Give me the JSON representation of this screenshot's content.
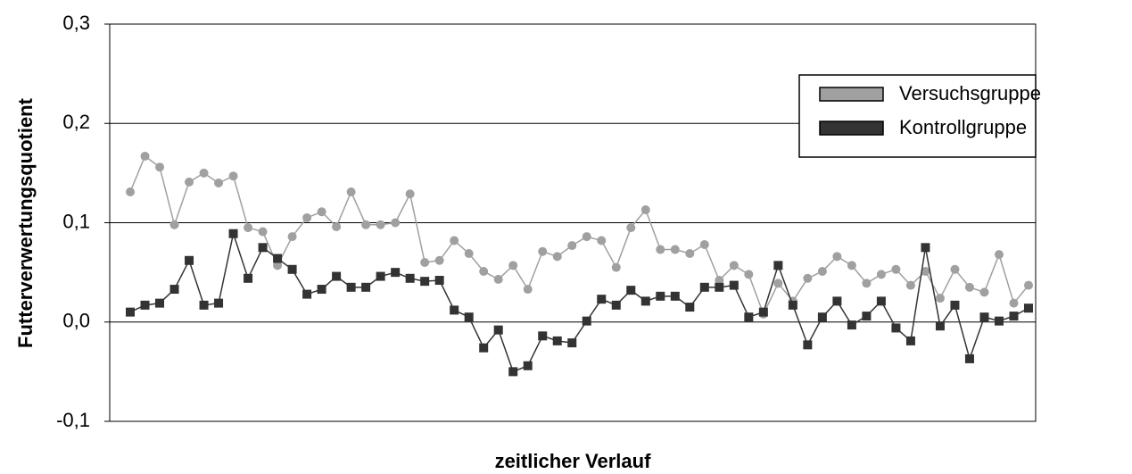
{
  "chart_data": {
    "type": "line",
    "xlabel": "zeitlicher Verlauf",
    "ylabel": "Futterverwertungsquotient",
    "ylim": [
      -0.1,
      0.3
    ],
    "yticks": [
      {
        "value": -0.1,
        "label": "-0,1"
      },
      {
        "value": 0,
        "label": "0,0"
      },
      {
        "value": 0.1,
        "label": "0,1"
      },
      {
        "value": 0.2,
        "label": "0,2"
      },
      {
        "value": 0.3,
        "label": "0,3"
      }
    ],
    "grid": true,
    "legend": "upper right",
    "series": [
      {
        "name": "Versuchsgruppe",
        "color": "#a0a0a0",
        "marker": "circle",
        "values": [
          0.131,
          0.167,
          0.156,
          0.098,
          0.141,
          0.15,
          0.14,
          0.147,
          0.095,
          0.091,
          0.057,
          0.086,
          0.105,
          0.111,
          0.096,
          0.131,
          0.098,
          0.098,
          0.1,
          0.129,
          0.06,
          0.062,
          0.082,
          0.069,
          0.051,
          0.043,
          0.057,
          0.033,
          0.071,
          0.066,
          0.077,
          0.086,
          0.082,
          0.055,
          0.095,
          0.113,
          0.073,
          0.073,
          0.069,
          0.078,
          0.042,
          0.057,
          0.048,
          0.008,
          0.039,
          0.021,
          0.044,
          0.051,
          0.066,
          0.057,
          0.039,
          0.048,
          0.053,
          0.037,
          0.051,
          0.024,
          0.053,
          0.035,
          0.03,
          0.068,
          0.019,
          0.037
        ]
      },
      {
        "name": "Kontrollgruppe",
        "color": "#333333",
        "marker": "square",
        "values": [
          0.01,
          0.017,
          0.019,
          0.033,
          0.062,
          0.017,
          0.019,
          0.089,
          0.044,
          0.075,
          0.064,
          0.053,
          0.028,
          0.033,
          0.046,
          0.035,
          0.035,
          0.046,
          0.05,
          0.044,
          0.041,
          0.042,
          0.012,
          0.005,
          -0.026,
          -0.008,
          -0.05,
          -0.044,
          -0.014,
          -0.019,
          -0.021,
          0.001,
          0.023,
          0.017,
          0.032,
          0.021,
          0.026,
          0.026,
          0.015,
          0.035,
          0.035,
          0.037,
          0.005,
          0.01,
          0.057,
          0.017,
          -0.023,
          0.005,
          0.021,
          -0.003,
          0.006,
          0.021,
          -0.006,
          -0.019,
          0.075,
          -0.004,
          0.017,
          -0.037,
          0.005,
          0.001,
          0.006,
          0.014
        ]
      }
    ]
  }
}
